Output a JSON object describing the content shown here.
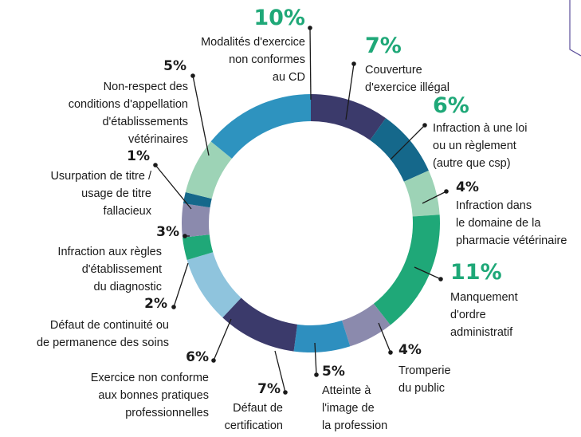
{
  "chart_data": {
    "type": "donut",
    "categories": [
      "Couverture\nd'exercice illégal",
      "Infraction à une loi\nou un règlement\n(autre que csp)",
      "Infraction dans\nle domaine de la\npharmacie vétérinaire",
      "Manquement\nd'ordre\nadministratif",
      "Tromperie\ndu public",
      "Atteinte à\nl'image de\nla profession",
      "Défaut de\ncertification",
      "Exercice non conforme\naux bonnes pratiques\nprofessionnelles",
      "Défaut de continuité ou\nde permanence des soins",
      "Infraction aux règles\nd'établissement\ndu diagnostic",
      "Usurpation de titre /\nusage de titre\nfallacieux",
      "Non-respect des\nconditions d'appellation\nd'établissements\nvétérinaires",
      "Modalités d'exercice\nnon conformes\nau CD"
    ],
    "values": [
      7,
      6,
      4,
      11,
      4,
      5,
      7,
      6,
      2,
      3,
      1,
      5,
      10
    ],
    "value_labels": [
      "7%",
      "6%",
      "4%",
      "11%",
      "4%",
      "5%",
      "7%",
      "6%",
      "2%",
      "3%",
      "1%",
      "5%",
      "10%"
    ],
    "colors": [
      "#3b3a6b",
      "#15688b",
      "#9dd3b6",
      "#1fa878",
      "#8b8aad",
      "#2e8fbf",
      "#3b3a6b",
      "#8fc4dd",
      "#1fa878",
      "#8b8aad",
      "#15688b",
      "#9dd3b6",
      "#2e93bf"
    ]
  }
}
